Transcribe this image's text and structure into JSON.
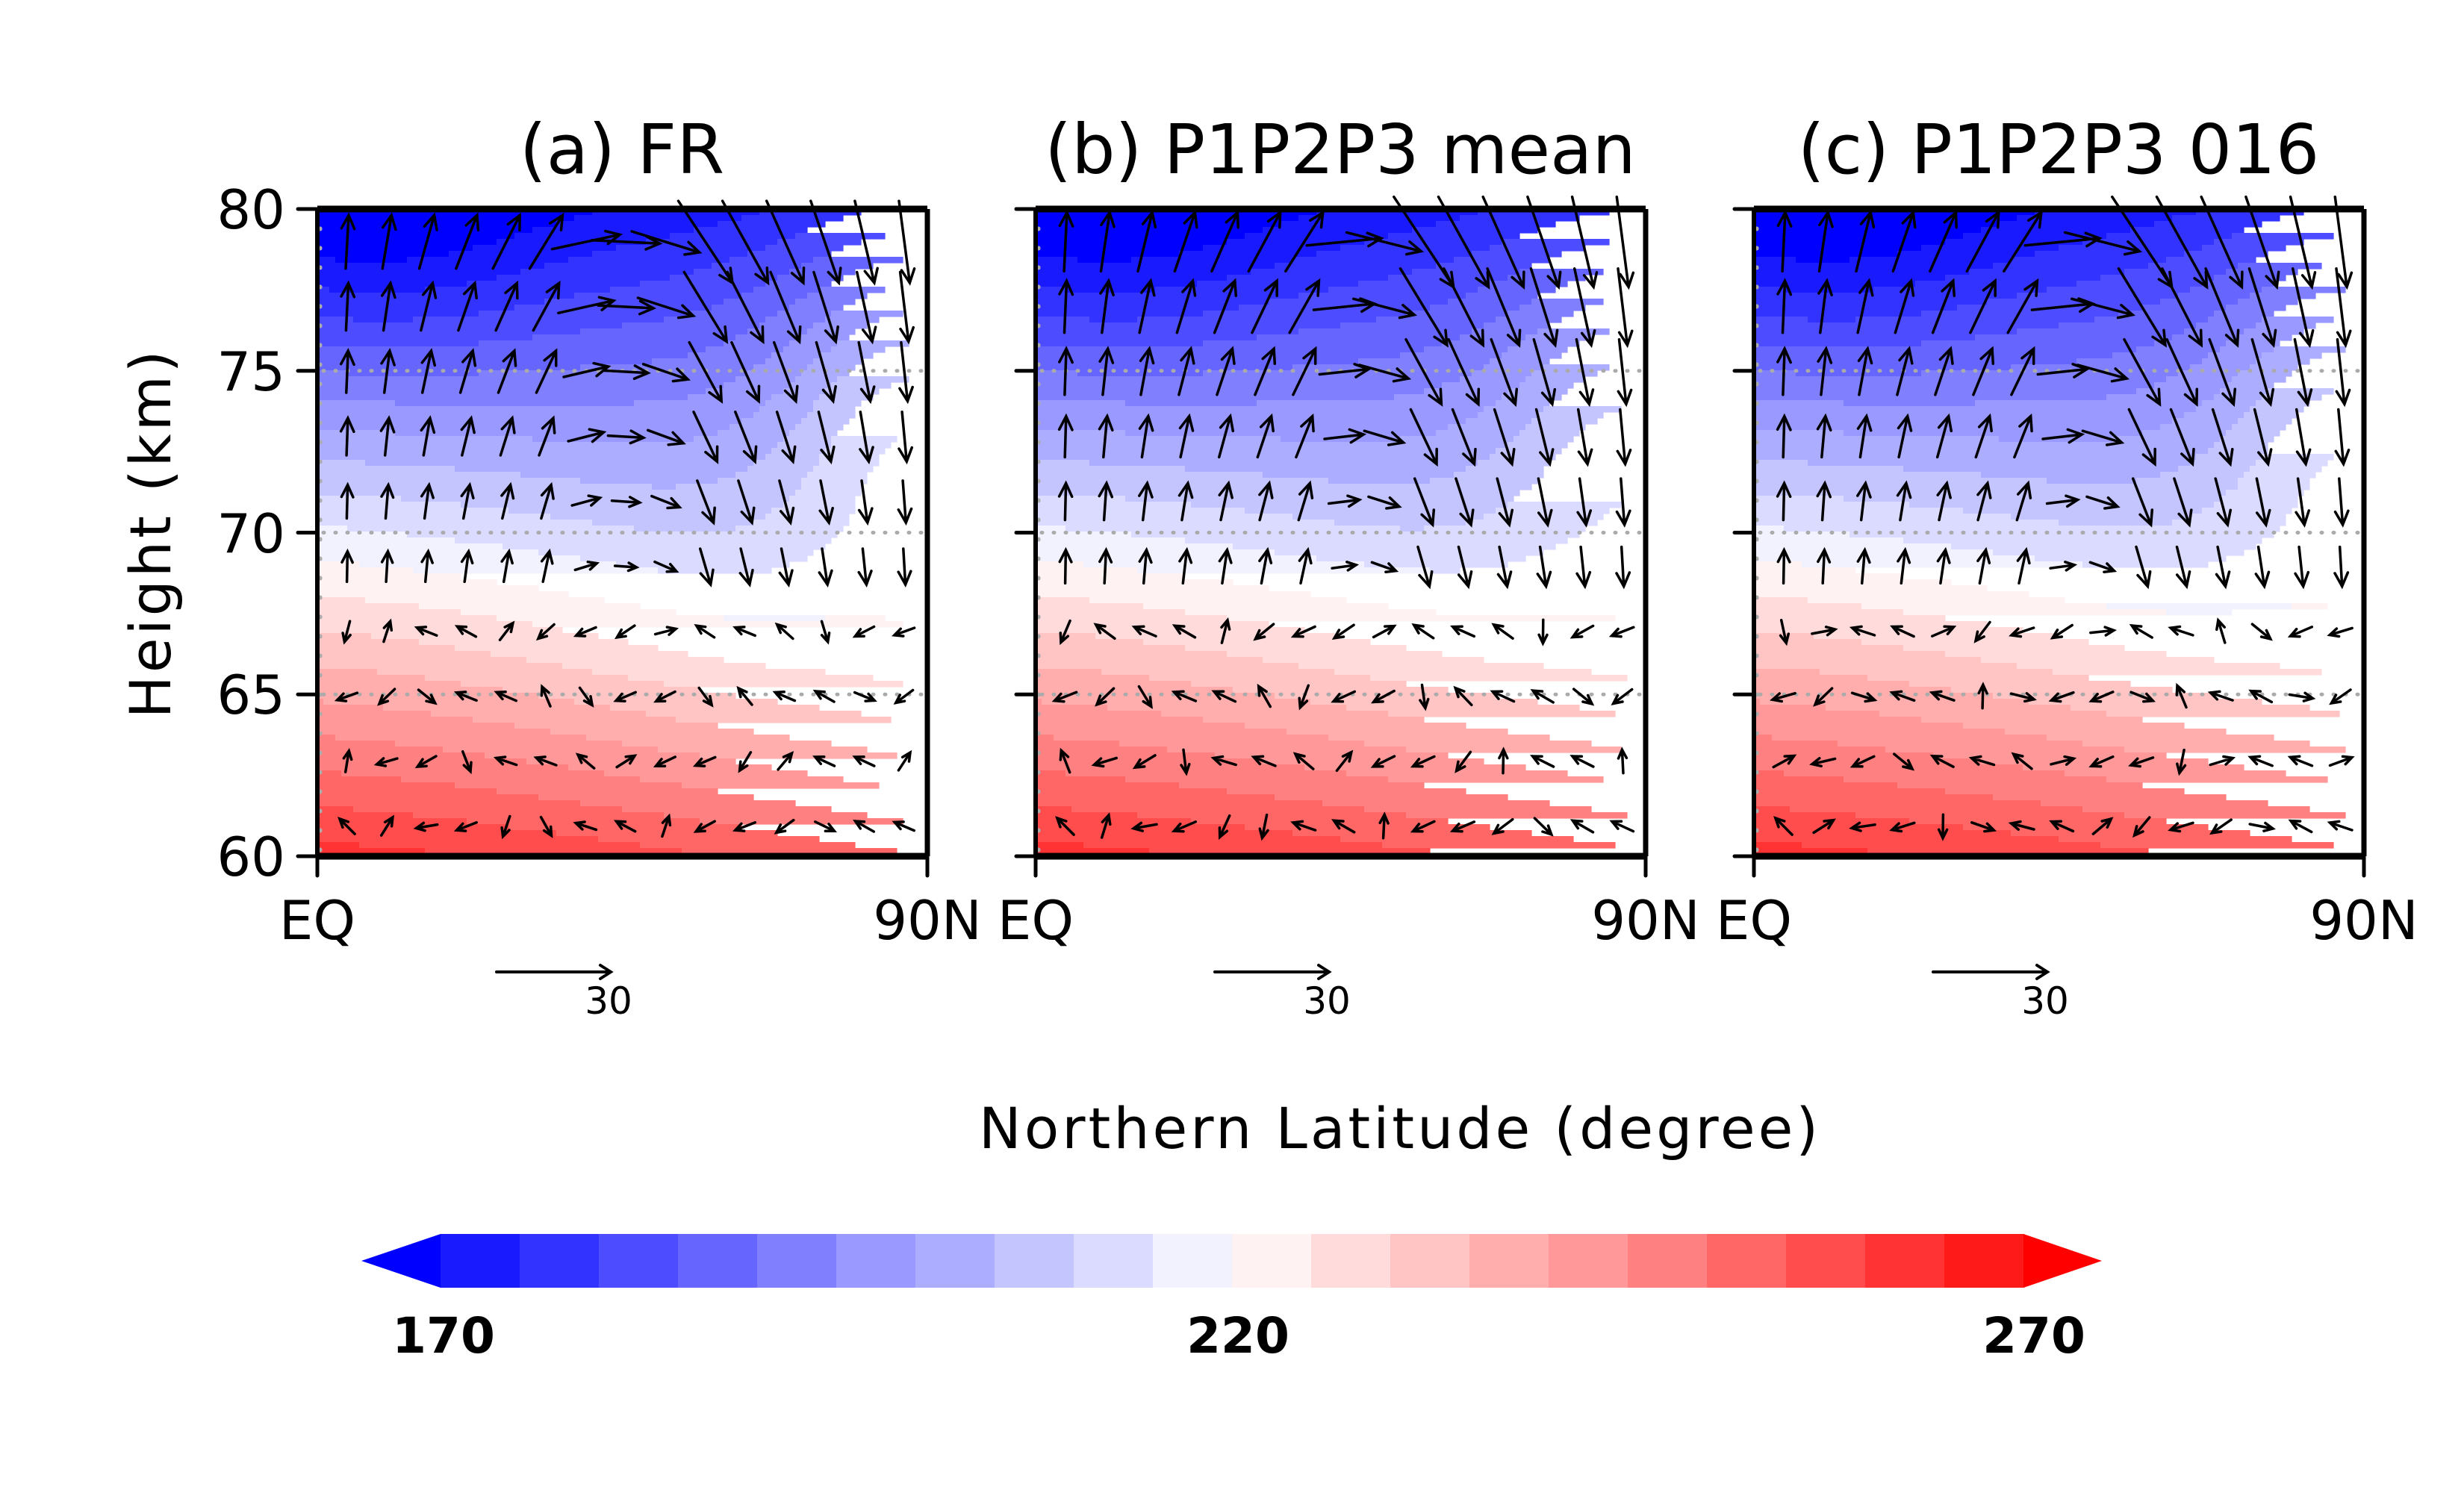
{
  "chart_data": [
    {
      "type": "heatmap",
      "panel": "a",
      "title": "(a) FR",
      "xlabel": "Northern Latitude (degree)",
      "ylabel": "Height (km)",
      "x_ticks": [
        "EQ",
        "90N"
      ],
      "xlim": [
        0,
        90
      ],
      "y_ticks": [
        "60",
        "65",
        "70",
        "75",
        "80"
      ],
      "ylim": [
        60,
        80
      ],
      "grid": "dotted horizontal at 65, 70, 75",
      "field": "temperature (colored contours) with wind vectors",
      "field_params": {
        "t_low": 270,
        "t_high": 170,
        "cold_core_lat": 10,
        "cold_core_height": 79,
        "slope": 0.55,
        "polar_warm": 0.55
      },
      "vector_field": {
        "upwelling_lat_max": 35,
        "downwelling_lat_min": 55,
        "max_speed_top": 1.0,
        "lower_noise": 0.35
      },
      "reference_vector": {
        "label": "30"
      }
    },
    {
      "type": "heatmap",
      "panel": "b",
      "title": "(b) P1P2P3 mean",
      "xlabel": "Northern Latitude (degree)",
      "ylabel": "Height (km)",
      "x_ticks": [
        "EQ",
        "90N"
      ],
      "xlim": [
        0,
        90
      ],
      "y_ticks": [
        "60",
        "65",
        "70",
        "75",
        "80"
      ],
      "ylim": [
        60,
        80
      ],
      "grid": "dotted horizontal at 65, 70, 75",
      "field": "temperature (colored contours) with wind vectors",
      "field_params": {
        "t_low": 270,
        "t_high": 170,
        "cold_core_lat": 12,
        "cold_core_height": 79,
        "slope": 0.5,
        "polar_warm": 0.45
      },
      "vector_field": {
        "upwelling_lat_max": 40,
        "downwelling_lat_min": 55,
        "max_speed_top": 1.1,
        "lower_noise": 0.3
      },
      "reference_vector": {
        "label": "30"
      }
    },
    {
      "type": "heatmap",
      "panel": "c",
      "title": "(c) P1P2P3 016",
      "xlabel": "Northern Latitude (degree)",
      "ylabel": "Height (km)",
      "x_ticks": [
        "EQ",
        "90N"
      ],
      "xlim": [
        0,
        90
      ],
      "y_ticks": [
        "60",
        "65",
        "70",
        "75",
        "80"
      ],
      "ylim": [
        60,
        80
      ],
      "grid": "dotted horizontal at 65, 70, 75",
      "field": "temperature (colored contours) with wind vectors",
      "field_params": {
        "t_low": 270,
        "t_high": 170,
        "cold_core_lat": 12,
        "cold_core_height": 79,
        "slope": 0.5,
        "polar_warm": 0.5
      },
      "vector_field": {
        "upwelling_lat_max": 40,
        "downwelling_lat_min": 55,
        "max_speed_top": 1.1,
        "lower_noise": 0.5
      },
      "reference_vector": {
        "label": "30"
      }
    }
  ],
  "axes": {
    "ylabel": "Height (km)",
    "xlabel": "Northern Latitude (degree)",
    "y_ticks": [
      "60",
      "65",
      "70",
      "75",
      "80"
    ],
    "x_tick_left": "EQ",
    "x_tick_right": "90N"
  },
  "panels": [
    {
      "title": "(a) FR",
      "ref_label": "30"
    },
    {
      "title": "(b) P1P2P3 mean",
      "ref_label": "30"
    },
    {
      "title": "(c) P1P2P3 016",
      "ref_label": "30"
    }
  ],
  "colorbar": {
    "min": 170,
    "max": 270,
    "step": 5,
    "labels": [
      "170",
      "220",
      "270"
    ],
    "extend": "both",
    "colors": [
      "#1A1AFF",
      "#3333FF",
      "#4D4DFF",
      "#6666FF",
      "#8080FF",
      "#9999FF",
      "#ADADFF",
      "#C4C4FF",
      "#DBDBFF",
      "#F2F2FF",
      "#FFF2F2",
      "#FFDBDB",
      "#FFC4C4",
      "#FFADAD",
      "#FF9999",
      "#FF8080",
      "#FF6666",
      "#FF4D4D",
      "#FF3333",
      "#FF1A1A"
    ],
    "under_color": "#0000FF",
    "over_color": "#FF0000"
  }
}
